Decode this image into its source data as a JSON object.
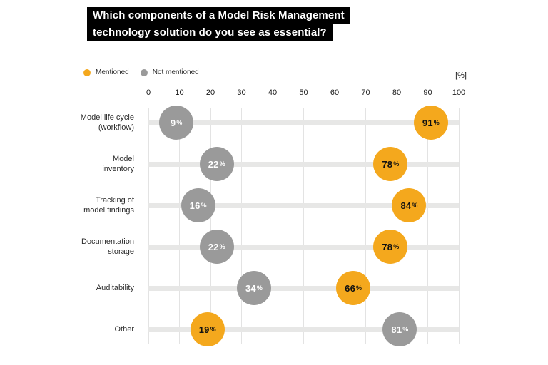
{
  "title": {
    "line1": "Which components of a Model Risk Management",
    "line2": "technology solution do you see as essential?"
  },
  "legend": [
    {
      "label": "Mentioned",
      "color": "#F4A81D"
    },
    {
      "label": "Not mentioned",
      "color": "#9A9A9A"
    }
  ],
  "axis": {
    "unit_label": "[%]",
    "ticks": [
      0,
      10,
      20,
      30,
      40,
      50,
      60,
      70,
      80,
      90,
      100
    ]
  },
  "colors": {
    "mentioned": "#F4A81D",
    "not_mentioned": "#9A9A9A",
    "mentioned_text": "#111111",
    "not_mentioned_text": "#ffffff",
    "band": "#e7e7e6",
    "gridline": "#e3e3e3",
    "title_bg": "#000000",
    "title_text": "#ffffff"
  },
  "chart_data": {
    "type": "scatter",
    "title": "Which components of a Model Risk Management technology solution do you see as essential?",
    "xlabel": "[%]",
    "xlim": [
      0,
      100
    ],
    "grid": true,
    "legend_position": "top-left",
    "categories": [
      [
        "Model life cycle",
        "(workflow)"
      ],
      [
        "Model",
        "inventory"
      ],
      [
        "Tracking of",
        "model findings"
      ],
      [
        "Documentation",
        "storage"
      ],
      [
        "Auditability"
      ],
      [
        "Other"
      ]
    ],
    "series": [
      {
        "name": "Mentioned",
        "color": "#F4A81D",
        "values": [
          91,
          78,
          84,
          78,
          66,
          19
        ]
      },
      {
        "name": "Not mentioned",
        "color": "#9A9A9A",
        "values": [
          9,
          22,
          16,
          22,
          34,
          81
        ]
      }
    ]
  }
}
